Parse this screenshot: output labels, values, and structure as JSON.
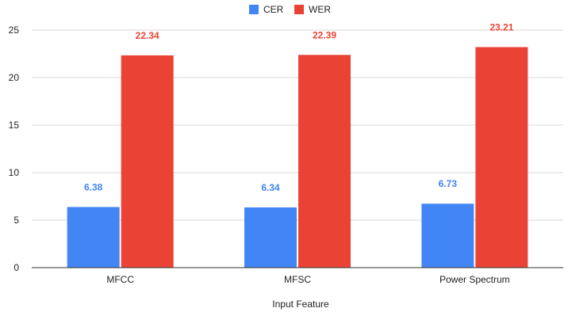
{
  "chart_data": {
    "type": "bar",
    "categories": [
      "MFCC",
      "MFSC",
      "Power Spectrum"
    ],
    "series": [
      {
        "name": "CER",
        "color": "#4285F4",
        "values": [
          6.38,
          6.34,
          6.73
        ],
        "labels": [
          "6.38",
          "6.34",
          "6.73"
        ]
      },
      {
        "name": "WER",
        "color": "#EA4335",
        "values": [
          22.34,
          22.39,
          23.21
        ],
        "labels": [
          "22.34",
          "22.39",
          "23.21"
        ]
      }
    ],
    "xlabel": "Input Feature",
    "ylabel": "",
    "ylim": [
      0,
      25
    ],
    "yticks": [
      0,
      5,
      10,
      15,
      20,
      25
    ],
    "grid": true,
    "legend_position": "top-center"
  }
}
